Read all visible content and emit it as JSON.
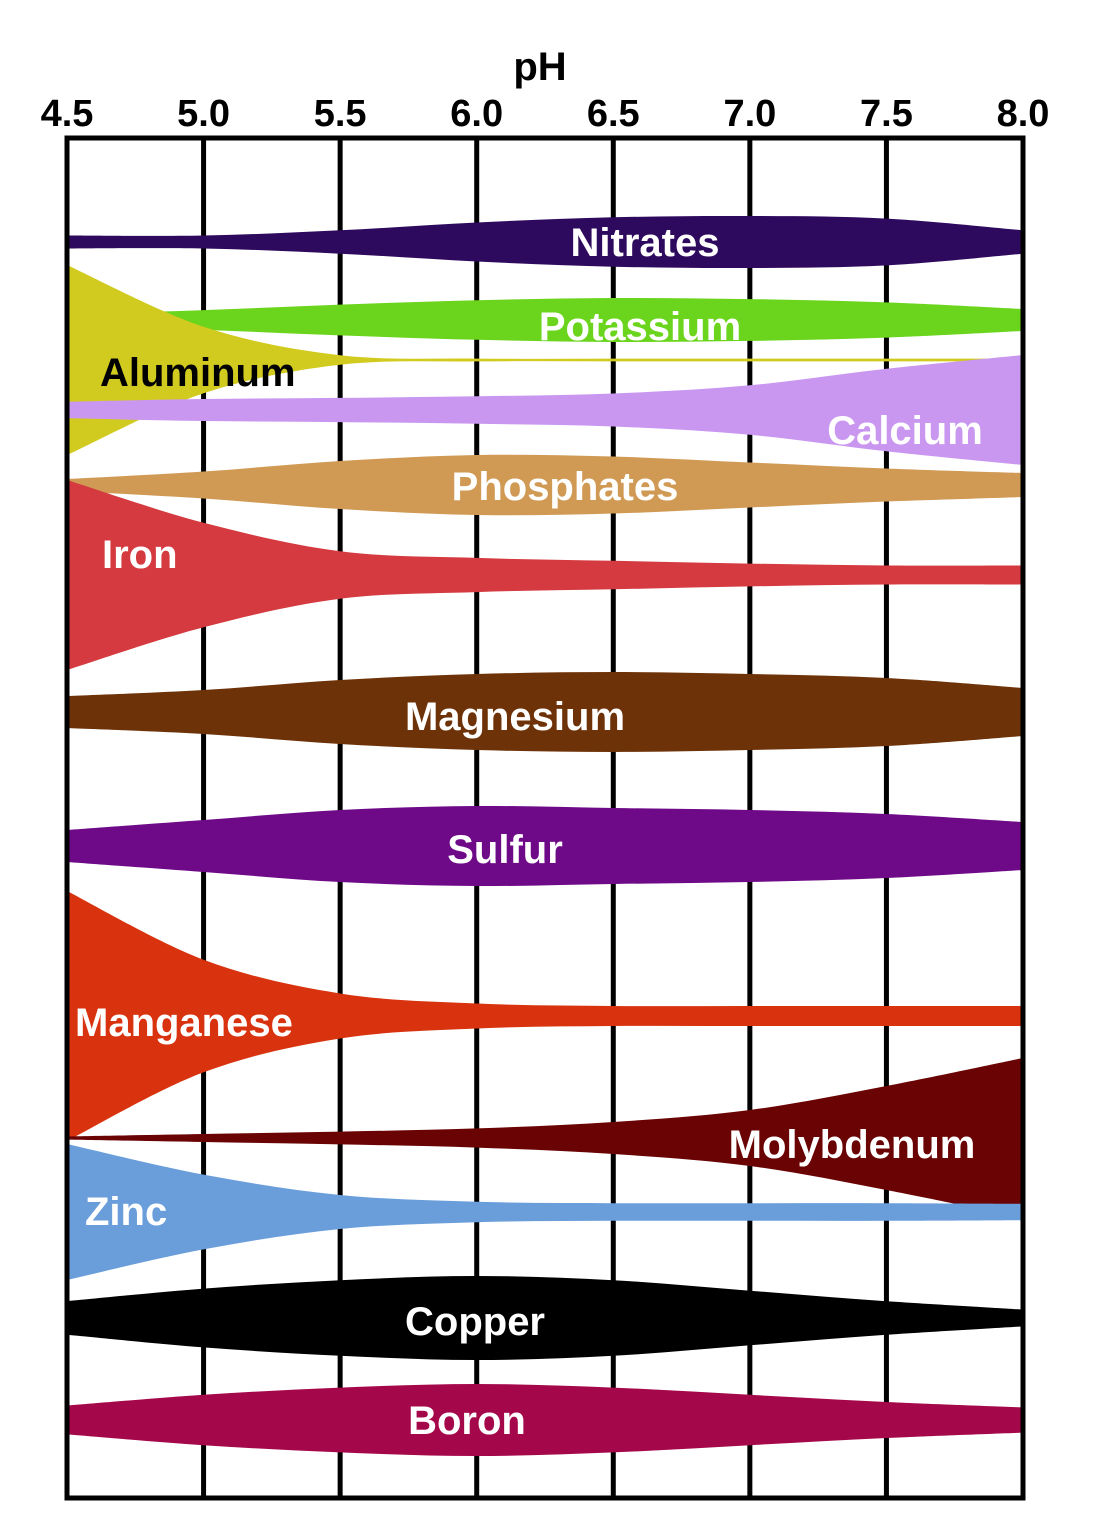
{
  "chart_data": {
    "type": "area",
    "title": "",
    "xlabel": "pH",
    "x_ticks": [
      "4.5",
      "5.0",
      "5.5",
      "6.0",
      "6.5",
      "7.0",
      "7.5",
      "8.0"
    ],
    "xlim": [
      4.5,
      8.0
    ],
    "grid": true,
    "x_axis_position": "top",
    "series": [
      {
        "name": "Nitrates",
        "color": "#2E0A5E",
        "label_color": "#ffffff",
        "x": [
          4.5,
          5.0,
          5.5,
          6.0,
          6.5,
          7.0,
          7.5,
          8.0
        ],
        "availability": [
          0.25,
          0.25,
          0.45,
          0.75,
          0.95,
          1.0,
          0.9,
          0.45
        ]
      },
      {
        "name": "Potassium",
        "color": "#6BD41C",
        "label_color": "#ffffff",
        "x": [
          4.5,
          5.0,
          5.5,
          6.0,
          6.5,
          7.0,
          7.5,
          8.0
        ],
        "availability": [
          0.25,
          0.45,
          0.7,
          0.9,
          1.0,
          0.95,
          0.8,
          0.5
        ]
      },
      {
        "name": "Aluminum",
        "color": "#D2CB1F",
        "label_color": "#000000",
        "x": [
          4.5,
          5.0,
          5.5,
          6.0,
          6.5,
          7.0,
          7.5,
          8.0
        ],
        "availability": [
          1.0,
          0.35,
          0.05,
          0,
          0,
          0,
          0,
          0
        ]
      },
      {
        "name": "Calcium",
        "color": "#C997F0",
        "label_color": "#ffffff",
        "x": [
          4.5,
          5.0,
          5.5,
          6.0,
          6.5,
          7.0,
          7.5,
          8.0
        ],
        "availability": [
          0.15,
          0.2,
          0.22,
          0.25,
          0.3,
          0.45,
          0.75,
          1.0
        ]
      },
      {
        "name": "Phosphates",
        "color": "#D09A55",
        "label_color": "#ffffff",
        "x": [
          4.5,
          5.0,
          5.5,
          6.0,
          6.5,
          7.0,
          7.5,
          8.0
        ],
        "availability": [
          0.2,
          0.45,
          0.8,
          1.0,
          0.95,
          0.75,
          0.55,
          0.4
        ]
      },
      {
        "name": "Iron",
        "color": "#D43A3F",
        "label_color": "#ffffff",
        "x": [
          4.5,
          5.0,
          5.5,
          6.0,
          6.5,
          7.0,
          7.5,
          8.0
        ],
        "availability": [
          1.0,
          0.55,
          0.25,
          0.18,
          0.15,
          0.12,
          0.1,
          0.1
        ]
      },
      {
        "name": "Magnesium",
        "color": "#6E3208",
        "label_color": "#ffffff",
        "x": [
          4.5,
          5.0,
          5.5,
          6.0,
          6.5,
          7.0,
          7.5,
          8.0
        ],
        "availability": [
          0.4,
          0.55,
          0.8,
          0.95,
          1.0,
          0.95,
          0.85,
          0.6
        ]
      },
      {
        "name": "Sulfur",
        "color": "#6E0A88",
        "label_color": "#ffffff",
        "x": [
          4.5,
          5.0,
          5.5,
          6.0,
          6.5,
          7.0,
          7.5,
          8.0
        ],
        "availability": [
          0.4,
          0.65,
          0.9,
          1.0,
          0.95,
          0.9,
          0.8,
          0.6
        ]
      },
      {
        "name": "Manganese",
        "color": "#D8330E",
        "label_color": "#ffffff",
        "x": [
          4.5,
          5.0,
          5.5,
          6.0,
          6.5,
          7.0,
          7.5,
          8.0
        ],
        "availability": [
          1.0,
          0.45,
          0.18,
          0.1,
          0.08,
          0.08,
          0.08,
          0.08
        ]
      },
      {
        "name": "Molybdenum",
        "color": "#6A0404",
        "label_color": "#ffffff",
        "x": [
          4.5,
          5.0,
          5.5,
          6.0,
          6.5,
          7.0,
          7.5,
          8.0
        ],
        "availability": [
          0.02,
          0.05,
          0.08,
          0.12,
          0.2,
          0.35,
          0.65,
          1.0
        ]
      },
      {
        "name": "Zinc",
        "color": "#6A9EDB",
        "label_color": "#ffffff",
        "x": [
          4.5,
          5.0,
          5.5,
          6.0,
          6.5,
          7.0,
          7.5,
          8.0
        ],
        "availability": [
          1.0,
          0.55,
          0.25,
          0.15,
          0.13,
          0.13,
          0.13,
          0.12
        ]
      },
      {
        "name": "Copper",
        "color": "#000000",
        "label_color": "#ffffff",
        "x": [
          4.5,
          5.0,
          5.5,
          6.0,
          6.5,
          7.0,
          7.5,
          8.0
        ],
        "availability": [
          0.4,
          0.7,
          0.9,
          1.0,
          0.9,
          0.65,
          0.4,
          0.2
        ]
      },
      {
        "name": "Boron",
        "color": "#A5084A",
        "label_color": "#ffffff",
        "x": [
          4.5,
          5.0,
          5.5,
          6.0,
          6.5,
          7.0,
          7.5,
          8.0
        ],
        "availability": [
          0.4,
          0.7,
          0.9,
          1.0,
          0.9,
          0.7,
          0.5,
          0.35
        ]
      }
    ]
  }
}
